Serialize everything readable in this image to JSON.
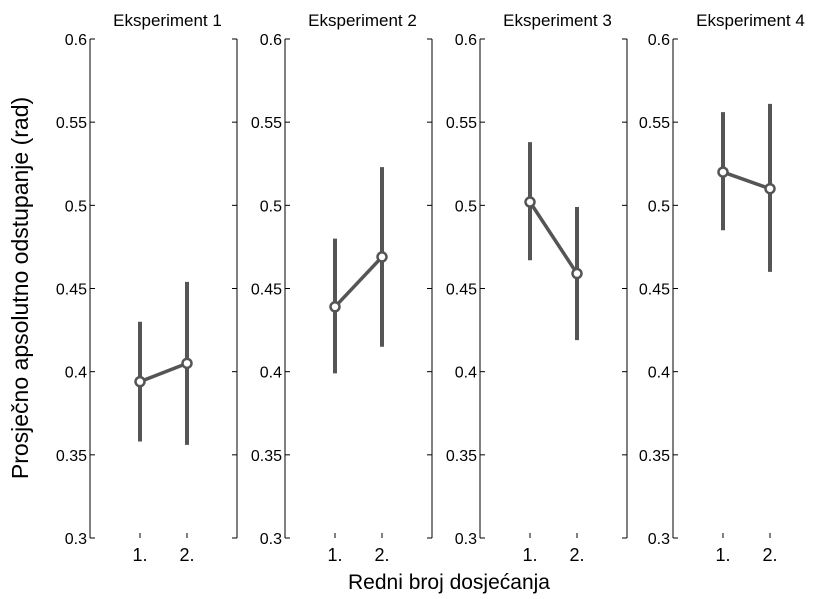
{
  "chart_data": {
    "type": "line",
    "ylabel": "Prosječno apsolutno odstupanje (rad)",
    "xlabel": "Redni broj dosjećanja",
    "ylim": [
      0.3,
      0.6
    ],
    "yticks": [
      "0.3",
      "0.35",
      "0.4",
      "0.45",
      "0.5",
      "0.55",
      "0.6"
    ],
    "categories": [
      "1.",
      "2."
    ],
    "grid": false,
    "line_color": "#555555",
    "panels": [
      {
        "title": "Eksperiment 1",
        "values": [
          0.394,
          0.405
        ],
        "lower": [
          0.358,
          0.356
        ],
        "upper": [
          0.43,
          0.454
        ]
      },
      {
        "title": "Eksperiment 2",
        "values": [
          0.439,
          0.469
        ],
        "lower": [
          0.399,
          0.415
        ],
        "upper": [
          0.48,
          0.523
        ]
      },
      {
        "title": "Eksperiment 3",
        "values": [
          0.502,
          0.459
        ],
        "lower": [
          0.467,
          0.419
        ],
        "upper": [
          0.538,
          0.499
        ]
      },
      {
        "title": "Eksperiment 4",
        "values": [
          0.52,
          0.51
        ],
        "lower": [
          0.485,
          0.46
        ],
        "upper": [
          0.556,
          0.561
        ]
      }
    ]
  }
}
